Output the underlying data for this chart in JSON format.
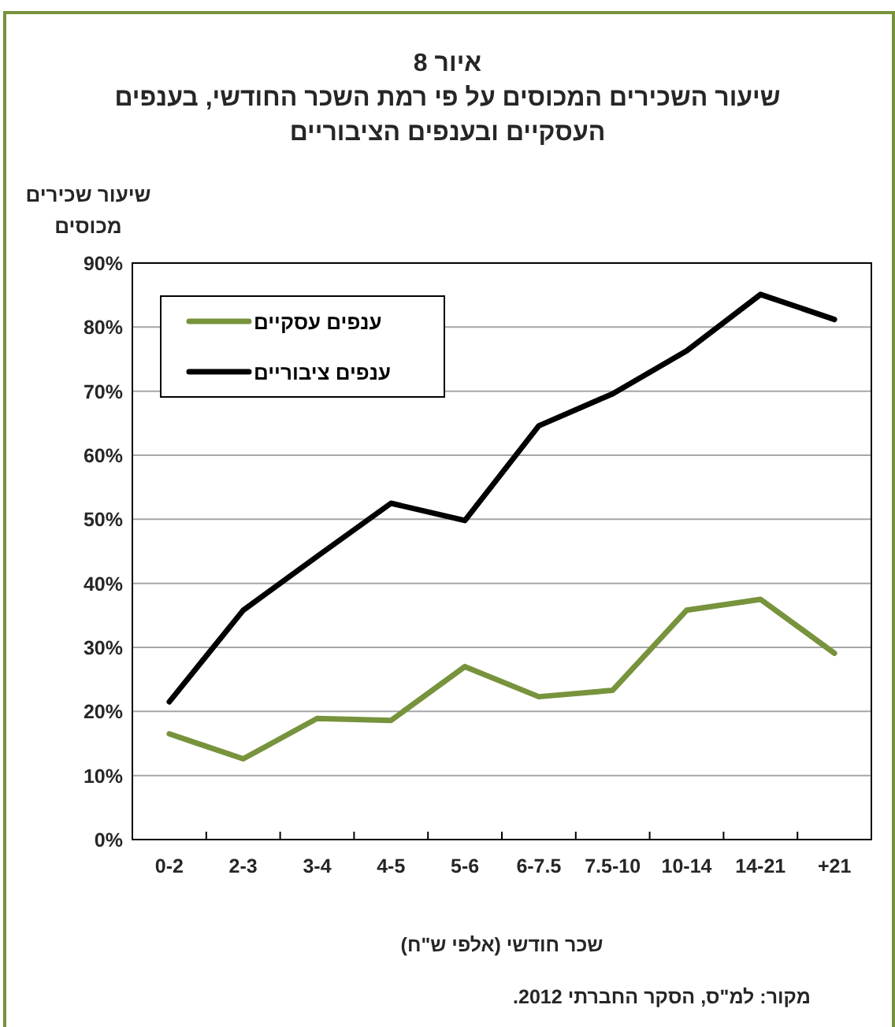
{
  "chart_data": {
    "type": "line",
    "title": "איור 8",
    "subtitle": "שיעור השכירים המכוסים על פי רמת השכר החודשי, בענפים העסקיים ובענפים הציבוריים",
    "ylabel": "שיעור שכירים מכוסים",
    "xlabel": "שכר חודשי (אלפי ש\"ח)",
    "categories": [
      "0-2",
      "2-3",
      "3-4",
      "4-5",
      "5-6",
      "6-7.5",
      "7.5-10",
      "10-14",
      "14-21",
      "+21"
    ],
    "series": [
      {
        "name": "ענפים עסקיים",
        "color": "#77933c",
        "values": [
          16.5,
          12.6,
          18.9,
          18.6,
          27.0,
          22.3,
          23.3,
          35.8,
          37.5,
          29.1
        ]
      },
      {
        "name": "ענפים ציבוריים",
        "color": "#000000",
        "values": [
          21.5,
          35.8,
          44.2,
          52.5,
          49.8,
          64.6,
          69.6,
          76.3,
          85.1,
          81.2
        ]
      }
    ],
    "ylim": [
      0,
      90
    ],
    "yticks": [
      {
        "value": 0,
        "label": "0%"
      },
      {
        "value": 10,
        "label": "10%"
      },
      {
        "value": 20,
        "label": "20%"
      },
      {
        "value": 30,
        "label": "30%"
      },
      {
        "value": 40,
        "label": "40%"
      },
      {
        "value": 50,
        "label": "50%"
      },
      {
        "value": 60,
        "label": "60%"
      },
      {
        "value": 70,
        "label": "70%"
      },
      {
        "value": 80,
        "label": "80%"
      },
      {
        "value": 90,
        "label": "90%"
      }
    ],
    "grid": "y",
    "legend": "top left",
    "marker": "none",
    "line_style": "solid",
    "annotations": [
      "מקור: למ\"ס, הסקר החברתי 2012."
    ]
  }
}
